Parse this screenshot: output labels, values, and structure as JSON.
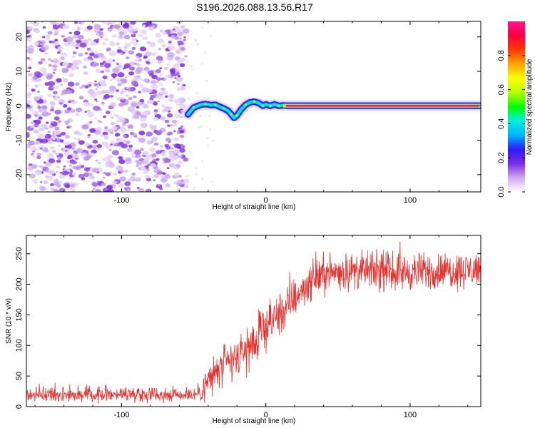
{
  "figure": {
    "title": "S196.2026.088.13.56.R17"
  },
  "chart_data": [
    {
      "type": "heatmap",
      "title": "S196.2026.088.13.56.R17",
      "xlabel": "Height of straight line (km)",
      "ylabel": "Frequency (Hz)",
      "xlim": [
        -166,
        149
      ],
      "ylim": [
        -25,
        24.5
      ],
      "xticks": [
        -100,
        0,
        100
      ],
      "yticks": [
        -20,
        -10,
        0,
        10,
        20
      ],
      "noise_region_x": [
        -166,
        -55
      ],
      "ridge": {
        "x": [
          -54,
          -50,
          -45,
          -42,
          -38,
          -35,
          -32,
          -29,
          -26,
          -24,
          -22,
          -20,
          -17,
          -14,
          -11,
          -8,
          -5,
          -2,
          0,
          3,
          6,
          9,
          12,
          15,
          149
        ],
        "freq": [
          -2.5,
          -0.5,
          0.3,
          0.5,
          0.2,
          0.3,
          -0.3,
          -0.8,
          -1.5,
          -2.5,
          -3.5,
          -2.8,
          -1.0,
          0.3,
          1.0,
          1.2,
          0.8,
          0.0,
          0.4,
          0.0,
          0.4,
          0.0,
          0.1,
          0.0,
          0.0
        ]
      },
      "colorbar": {
        "label": "Normalized spectral amplitude",
        "range": [
          0.0,
          1.0
        ],
        "ticks": [
          "0.0",
          "0.2",
          "0.4",
          "0.6",
          "0.8"
        ],
        "colors": [
          "#ffffff",
          "#cfa8f0",
          "#7a2be2",
          "#2b1bff",
          "#00b4ff",
          "#00f0e0",
          "#00ff00",
          "#b6ff00",
          "#ffff00",
          "#ffa500",
          "#ff3a00",
          "#ff0040",
          "#ff1493"
        ]
      }
    },
    {
      "type": "line",
      "xlabel": "Height of straight line (km)",
      "ylabel": "SNR (10 * v/v)",
      "xlim": [
        -166,
        149
      ],
      "ylim": [
        0,
        280
      ],
      "xticks": [
        -100,
        0,
        100
      ],
      "yticks": [
        0,
        50,
        100,
        150,
        200,
        250
      ],
      "series": [
        {
          "name": "SNR",
          "color": "#e8302c",
          "x": [
            -166,
            -140,
            -120,
            -100,
            -80,
            -60,
            -48,
            -44,
            -40,
            -35,
            -30,
            -25,
            -20,
            -15,
            -10,
            -5,
            0,
            5,
            10,
            15,
            20,
            25,
            30,
            35,
            40,
            50,
            60,
            80,
            100,
            120,
            140,
            149
          ],
          "values": [
            20,
            20,
            20,
            21,
            20,
            20,
            21,
            28,
            42,
            55,
            65,
            72,
            78,
            90,
            100,
            112,
            128,
            142,
            152,
            162,
            178,
            190,
            202,
            212,
            218,
            220,
            222,
            221,
            220,
            222,
            223,
            225
          ],
          "noise_amplitude": [
            9,
            9,
            9,
            9,
            9,
            9,
            9,
            18,
            22,
            25,
            25,
            26,
            26,
            26,
            26,
            26,
            26,
            26,
            26,
            26,
            24,
            22,
            22,
            22,
            22,
            22,
            22,
            22,
            22,
            22,
            22,
            22
          ]
        }
      ]
    }
  ]
}
